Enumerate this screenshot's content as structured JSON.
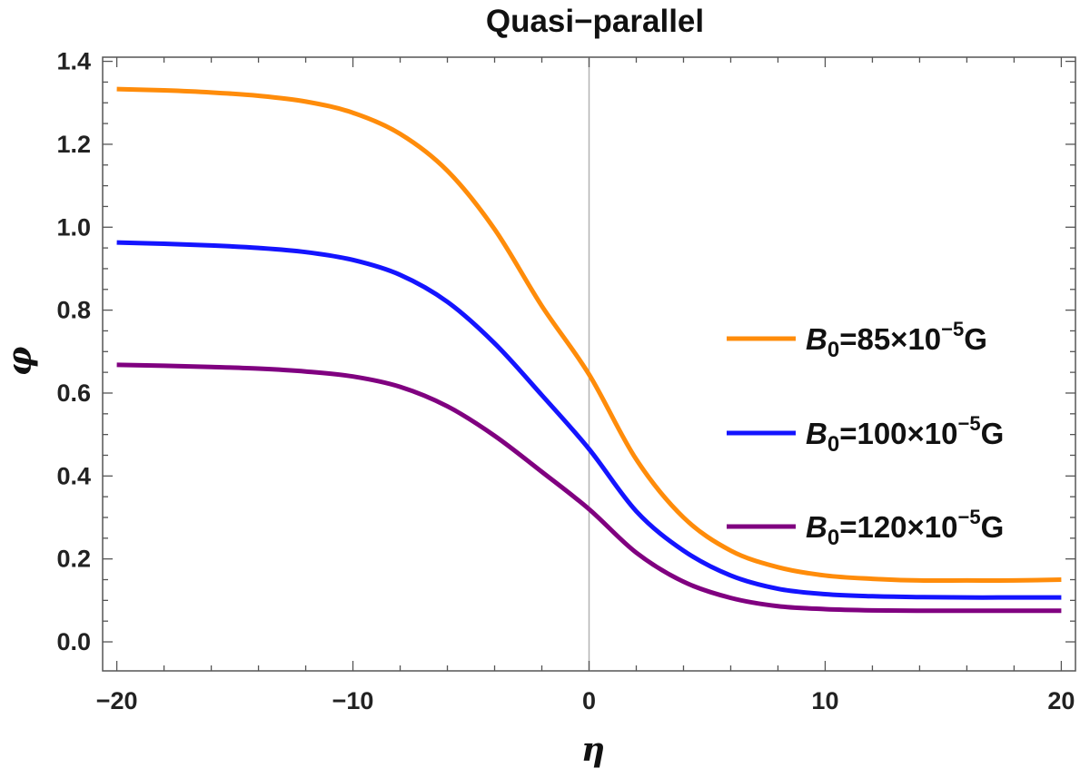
{
  "chart_data": {
    "type": "line",
    "title": "Quasi−parallel",
    "xlabel": "η",
    "ylabel": "φ",
    "xlim": [
      -20.6,
      20.6
    ],
    "ylim": [
      -0.07,
      1.41
    ],
    "xticks": [
      -20,
      -10,
      0,
      10,
      20
    ],
    "xtick_labels": [
      "−20",
      "−10",
      "0",
      "10",
      "20"
    ],
    "yticks": [
      0.0,
      0.2,
      0.4,
      0.6,
      0.8,
      1.0,
      1.2,
      1.4
    ],
    "ytick_labels": [
      "0.0",
      "0.2",
      "0.4",
      "0.6",
      "0.8",
      "1.0",
      "1.2",
      "1.4"
    ],
    "grid": false,
    "vertical_line_at_x": 0,
    "legend_position": "right",
    "x": [
      -20,
      -18,
      -16,
      -14,
      -12,
      -10,
      -8,
      -6,
      -4,
      -2,
      0,
      2,
      4,
      6,
      8,
      10,
      12,
      14,
      16,
      18,
      20
    ],
    "series": [
      {
        "name": "B0=85×10−5G",
        "legend": {
          "symbol": "B",
          "subscript": "0",
          "text": "=85×10",
          "superscript": "−5",
          "unit": "G"
        },
        "color": "#ff8c0a",
        "values": [
          1.333,
          1.33,
          1.325,
          1.317,
          1.303,
          1.276,
          1.225,
          1.136,
          0.995,
          0.81,
          0.645,
          0.44,
          0.3,
          0.22,
          0.18,
          0.16,
          0.152,
          0.148,
          0.148,
          0.148,
          0.15
        ]
      },
      {
        "name": "B0=100×10−5G",
        "legend": {
          "symbol": "B",
          "subscript": "0",
          "text": "=100×10",
          "superscript": "−5",
          "unit": "G"
        },
        "color": "#1414ff",
        "values": [
          0.963,
          0.96,
          0.956,
          0.95,
          0.94,
          0.921,
          0.885,
          0.82,
          0.72,
          0.595,
          0.465,
          0.315,
          0.22,
          0.16,
          0.128,
          0.115,
          0.11,
          0.108,
          0.107,
          0.107,
          0.107
        ]
      },
      {
        "name": "B0=120×10−5G",
        "legend": {
          "symbol": "B",
          "subscript": "0",
          "text": "=120×10",
          "superscript": "−5",
          "unit": "G"
        },
        "color": "#800080",
        "values": [
          0.668,
          0.666,
          0.663,
          0.659,
          0.652,
          0.64,
          0.615,
          0.568,
          0.497,
          0.41,
          0.32,
          0.215,
          0.145,
          0.106,
          0.086,
          0.079,
          0.076,
          0.075,
          0.075,
          0.075,
          0.075
        ]
      }
    ]
  }
}
